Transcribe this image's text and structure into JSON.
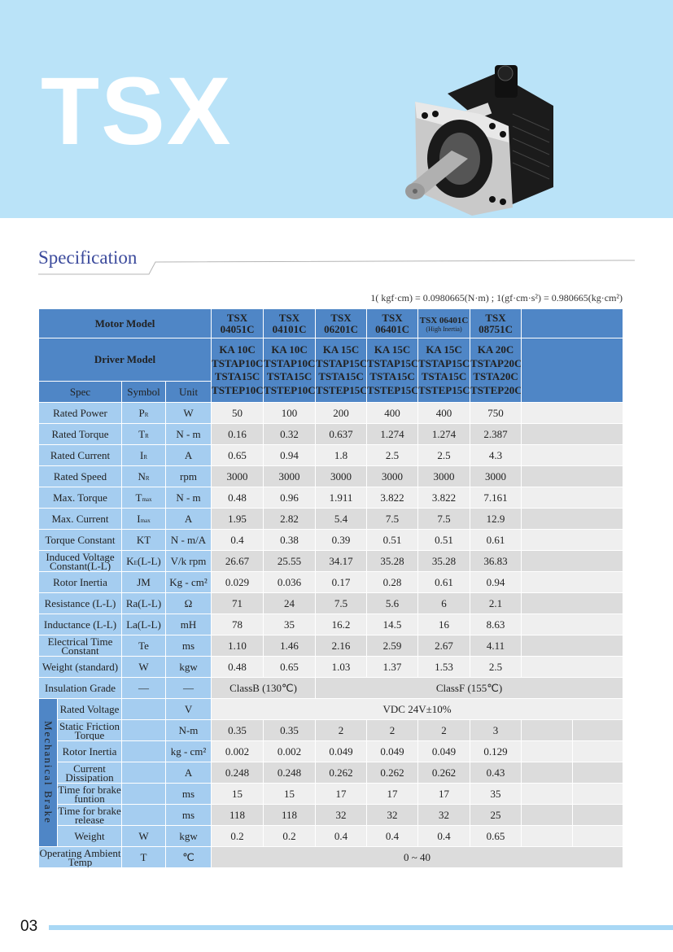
{
  "header": {
    "brand": "TSX"
  },
  "section_title": "Specification",
  "conversion_note": "1( kgf·cm) = 0.0980665(N·m) ; 1(gf·cm·s²) = 0.980665(kg·cm²)",
  "table": {
    "motor_model_label": "Motor Model",
    "driver_model_label": "Driver Model",
    "spec_label": "Spec",
    "symbol_label": "Symbol",
    "unit_label": "Unit",
    "motor_models": [
      {
        "line1": "TSX",
        "line2": "04051C"
      },
      {
        "line1": "TSX",
        "line2": "04101C"
      },
      {
        "line1": "TSX",
        "line2": "06201C"
      },
      {
        "line1": "TSX",
        "line2": "06401C"
      },
      {
        "line1": "TSX 06401C",
        "line2": "(High Inertia)"
      },
      {
        "line1": "TSX",
        "line2": "08751C"
      }
    ],
    "driver_models": [
      [
        "KA 10C",
        "TSTAP10C",
        "TSTA15C",
        "TSTEP10C"
      ],
      [
        "KA 10C",
        "TSTAP10C",
        "TSTA15C",
        "TSTEP10C"
      ],
      [
        "KA 15C",
        "TSTAP15C",
        "TSTA15C",
        "TSTEP15C"
      ],
      [
        "KA 15C",
        "TSTAP15C",
        "TSTA15C",
        "TSTEP15C"
      ],
      [
        "KA 15C",
        "TSTAP15C",
        "TSTA15C",
        "TSTEP15C"
      ],
      [
        "KA 20C",
        "TSTAP20C",
        "TSTA20C",
        "TSTEP20C"
      ]
    ],
    "rows": [
      {
        "spec": "Rated Power",
        "sym": "P",
        "sub": "R",
        "unit": "W",
        "values": [
          "50",
          "100",
          "200",
          "400",
          "400",
          "750"
        ]
      },
      {
        "spec": "Rated Torque",
        "sym": "T",
        "sub": "R",
        "unit": "N - m",
        "values": [
          "0.16",
          "0.32",
          "0.637",
          "1.274",
          "1.274",
          "2.387"
        ]
      },
      {
        "spec": "Rated Current",
        "sym": "I",
        "sub": "R",
        "unit": "A",
        "values": [
          "0.65",
          "0.94",
          "1.8",
          "2.5",
          "2.5",
          "4.3"
        ]
      },
      {
        "spec": "Rated Speed",
        "sym": "N",
        "sub": "R",
        "unit": "rpm",
        "values": [
          "3000",
          "3000",
          "3000",
          "3000",
          "3000",
          "3000"
        ]
      },
      {
        "spec": "Max. Torque",
        "sym": "T",
        "sub": "max",
        "unit": "N - m",
        "values": [
          "0.48",
          "0.96",
          "1.911",
          "3.822",
          "3.822",
          "7.161"
        ]
      },
      {
        "spec": "Max. Current",
        "sym": "I",
        "sub": "max",
        "unit": "A",
        "values": [
          "1.95",
          "2.82",
          "5.4",
          "7.5",
          "7.5",
          "12.9"
        ]
      },
      {
        "spec": "Torque Constant",
        "sym": "KT",
        "sub": "",
        "unit": "N - m/A",
        "values": [
          "0.4",
          "0.38",
          "0.39",
          "0.51",
          "0.51",
          "0.61"
        ]
      },
      {
        "spec": "Induced Voltage Constant(L-L)",
        "sym": "K",
        "sub": "E",
        "sym2": "(L-L)",
        "unit": "V/k rpm",
        "values": [
          "26.67",
          "25.55",
          "34.17",
          "35.28",
          "35.28",
          "36.83"
        ]
      },
      {
        "spec": "Rotor Inertia",
        "sym": "JM",
        "sub": "",
        "unit": "Kg - cm²",
        "values": [
          "0.029",
          "0.036",
          "0.17",
          "0.28",
          "0.61",
          "0.94"
        ]
      },
      {
        "spec": "Resistance (L-L)",
        "sym": "Ra(L-L)",
        "sub": "",
        "unit": "Ω",
        "values": [
          "71",
          "24",
          "7.5",
          "5.6",
          "6",
          "2.1"
        ]
      },
      {
        "spec": "Inductance (L-L)",
        "sym": "La(L-L)",
        "sub": "",
        "unit": "mH",
        "values": [
          "78",
          "35",
          "16.2",
          "14.5",
          "16",
          "8.63"
        ]
      },
      {
        "spec": "Electrical Time Constant",
        "sym": "Te",
        "sub": "",
        "unit": "ms",
        "values": [
          "1.10",
          "1.46",
          "2.16",
          "2.59",
          "2.67",
          "4.11"
        ]
      },
      {
        "spec": "Weight (standard)",
        "sym": "W",
        "sub": "",
        "unit": "kgw",
        "values": [
          "0.48",
          "0.65",
          "1.03",
          "1.37",
          "1.53",
          "2.5"
        ]
      }
    ],
    "insulation": {
      "spec": "Insulation Grade",
      "sym": "—",
      "unit": "—",
      "class_b": "ClassB (130℃)",
      "class_f": "ClassF (155℃)"
    },
    "brake_label": "Mechanical Brake",
    "brake_rated_voltage": {
      "spec": "Rated Voltage",
      "unit": "V",
      "value": "VDC 24V±10%"
    },
    "brake_rows": [
      {
        "spec": "Static Friction Torque",
        "sym": "",
        "unit": "N-m",
        "values": [
          "0.35",
          "0.35",
          "2",
          "2",
          "2",
          "3"
        ]
      },
      {
        "spec": "Rotor Inertia",
        "sym": "",
        "unit": "kg - cm²",
        "values": [
          "0.002",
          "0.002",
          "0.049",
          "0.049",
          "0.049",
          "0.129"
        ]
      },
      {
        "spec": "Current Dissipation",
        "sym": "",
        "unit": "A",
        "values": [
          "0.248",
          "0.248",
          "0.262",
          "0.262",
          "0.262",
          "0.43"
        ]
      },
      {
        "spec": "Time for brake funtion",
        "sym": "",
        "unit": "ms",
        "values": [
          "15",
          "15",
          "17",
          "17",
          "17",
          "35"
        ]
      },
      {
        "spec": "Time for brake release",
        "sym": "",
        "unit": "ms",
        "values": [
          "118",
          "118",
          "32",
          "32",
          "32",
          "25"
        ]
      },
      {
        "spec": "Weight",
        "sym": "W",
        "unit": "kgw",
        "values": [
          "0.2",
          "0.2",
          "0.4",
          "0.4",
          "0.4",
          "0.65"
        ]
      }
    ],
    "ambient": {
      "spec": "Operating Ambient Temp",
      "sym": "T",
      "unit": "℃",
      "value": "0 ~ 40"
    }
  },
  "footer": {
    "page_number": "03"
  },
  "colors": {
    "banner": "#bae3f8",
    "header_blue": "#4f86c6",
    "label_blue": "#a5cdf0",
    "title_blue": "#3b4a9c"
  }
}
